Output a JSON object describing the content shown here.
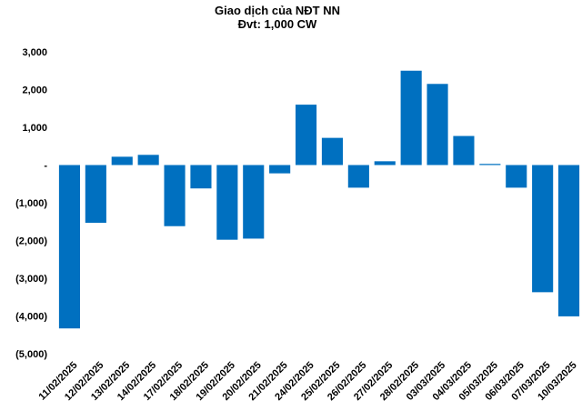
{
  "chart_data": {
    "type": "bar",
    "title": "Giao dịch của NĐT NN",
    "subtitle": "Đvt: 1,000 CW",
    "categories": [
      "11/02/2025",
      "12/02/2025",
      "13/02/2025",
      "14/02/2025",
      "17/02/2025",
      "18/02/2025",
      "19/02/2025",
      "20/02/2025",
      "21/02/2025",
      "24/02/2025",
      "25/02/2025",
      "26/02/2025",
      "27/02/2025",
      "28/02/2025",
      "03/03/2025",
      "04/03/2025",
      "05/03/2025",
      "06/03/2025",
      "07/03/2025",
      "10/03/2025"
    ],
    "values": [
      -4330,
      -1530,
      220,
      270,
      -1620,
      -620,
      -1980,
      -1950,
      -220,
      1600,
      720,
      -600,
      100,
      2500,
      2150,
      770,
      30,
      -600,
      -3370,
      -4010
    ],
    "ylim": [
      -5000,
      3000
    ],
    "yticks": [
      3000,
      2000,
      1000,
      0,
      -1000,
      -2000,
      -3000,
      -4000,
      -5000
    ],
    "ytick_labels": [
      "3,000",
      "2,000",
      "1,000",
      "-",
      "(1,000)",
      "(2,000)",
      "(3,000)",
      "(4,000)",
      "(5,000)"
    ],
    "bar_color": "#0070C0",
    "grid": false
  }
}
